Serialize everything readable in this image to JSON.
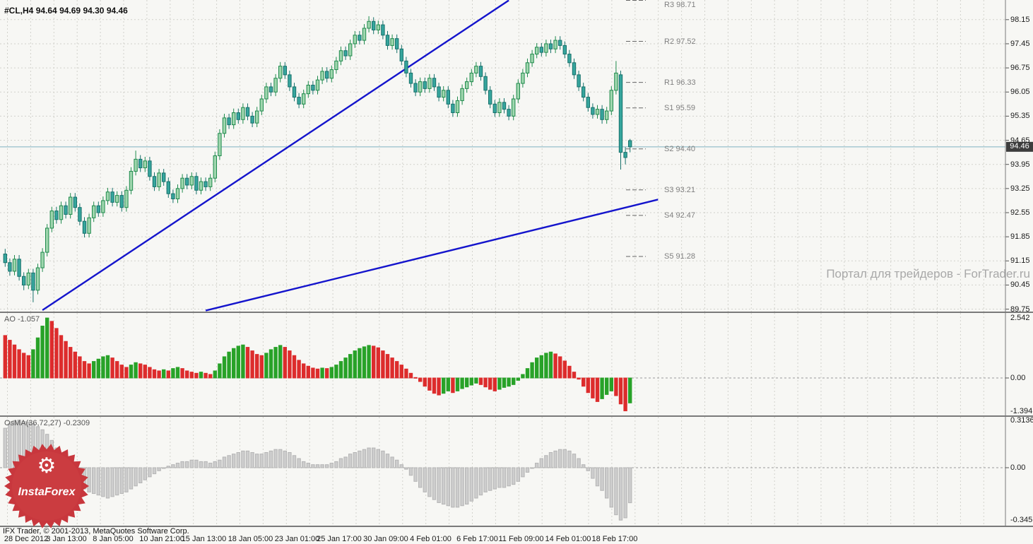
{
  "header": {
    "symbol_period": "#CL,H4",
    "open": "94.64",
    "high": "94.69",
    "low": "94.30",
    "close": "94.46"
  },
  "watermark": "Портал для трейдеров - ForTrader.ru",
  "copyright": "IFX Trader, © 2001-2013, MetaQuotes Software Corp.",
  "logo_text": "InstaForex",
  "icons": {
    "gear": "⚙"
  },
  "colors": {
    "grid": "#d2d2cc",
    "panel_border": "#7a7a7a",
    "trendline": "#1414cc",
    "bull_fill": "#9fd6ae",
    "bull_stroke": "#1f8a4c",
    "bear_fill": "#36a59d",
    "bear_stroke": "#17716b",
    "ao_up": "#28a228",
    "ao_down": "#dd2c2c",
    "osma_bar": "#cdcdcd",
    "osma_stroke": "#b5b5b5",
    "badge_bg": "#3d3d3d",
    "badge_text": "#ffffff",
    "logo_red": "#c8373d",
    "watermark_text": "#a8a8a8",
    "current_price_line": "#7fb2c0",
    "sr_text": "#808080"
  },
  "chart_data": {
    "type": "candlestick",
    "symbol": "#CL",
    "timeframe": "H4",
    "last_ohlc": {
      "open": 94.64,
      "high": 94.69,
      "low": 94.3,
      "close": 94.46
    },
    "current_price": 94.46,
    "current_price_label": "94.46",
    "ylim": [
      89.68,
      98.72
    ],
    "price_axis_ticks": [
      98.15,
      97.45,
      96.75,
      96.05,
      95.35,
      94.65,
      93.95,
      93.25,
      92.55,
      91.85,
      91.15,
      90.45,
      89.75
    ],
    "sr_levels": [
      {
        "label": "R3 98.71",
        "value": 98.71
      },
      {
        "label": "R2 97.52",
        "value": 97.52
      },
      {
        "label": "R1 96.33",
        "value": 96.33
      },
      {
        "label": "S1 95.59",
        "value": 95.59
      },
      {
        "label": "S2 94.40",
        "value": 94.4
      },
      {
        "label": "S3 93.21",
        "value": 93.21
      },
      {
        "label": "S4 92.47",
        "value": 92.47
      },
      {
        "label": "S5 91.28",
        "value": 91.28
      }
    ],
    "trendlines": [
      {
        "i1": 8,
        "p1": 89.72,
        "i2": 108,
        "p2": 98.71
      },
      {
        "i1": 43,
        "p1": 89.71,
        "i2": 140,
        "p2": 92.93
      }
    ],
    "time_axis": [
      {
        "label": "28 Dec 2012",
        "i": 1
      },
      {
        "label": "3 Jan 13:00",
        "i": 10
      },
      {
        "label": "8 Jan 05:00",
        "i": 20
      },
      {
        "label": "10 Jan 21:00",
        "i": 30
      },
      {
        "label": "15 Jan 13:00",
        "i": 39
      },
      {
        "label": "18 Jan 05:00",
        "i": 49
      },
      {
        "label": "23 Jan 01:00",
        "i": 59
      },
      {
        "label": "25 Jan 17:00",
        "i": 68
      },
      {
        "label": "30 Jan 09:00",
        "i": 78
      },
      {
        "label": "4 Feb 01:00",
        "i": 88
      },
      {
        "label": "6 Feb 17:00",
        "i": 98
      },
      {
        "label": "11 Feb 09:00",
        "i": 107
      },
      {
        "label": "14 Feb 01:00",
        "i": 117
      },
      {
        "label": "18 Feb 17:00",
        "i": 127
      }
    ],
    "candles": [
      [
        91.35,
        91.5,
        90.98,
        91.1
      ],
      [
        91.1,
        91.22,
        90.72,
        90.85
      ],
      [
        90.85,
        91.32,
        90.73,
        91.2
      ],
      [
        91.2,
        91.32,
        90.58,
        90.7
      ],
      [
        90.7,
        90.82,
        90.3,
        90.45
      ],
      [
        90.45,
        90.92,
        90.33,
        90.8
      ],
      [
        90.8,
        90.92,
        89.95,
        90.3
      ],
      [
        90.3,
        91.07,
        90.18,
        90.95
      ],
      [
        90.95,
        91.52,
        90.83,
        91.4
      ],
      [
        91.4,
        92.22,
        91.28,
        92.1
      ],
      [
        92.1,
        92.72,
        91.98,
        92.6
      ],
      [
        92.6,
        92.72,
        92.23,
        92.35
      ],
      [
        92.35,
        92.87,
        92.23,
        92.75
      ],
      [
        92.75,
        92.87,
        92.38,
        92.5
      ],
      [
        92.5,
        93.12,
        92.38,
        93.0
      ],
      [
        93.0,
        93.12,
        92.58,
        92.7
      ],
      [
        92.7,
        92.82,
        92.18,
        92.3
      ],
      [
        92.3,
        92.42,
        91.83,
        91.95
      ],
      [
        91.95,
        92.52,
        91.83,
        92.4
      ],
      [
        92.4,
        92.87,
        92.28,
        92.75
      ],
      [
        92.75,
        92.87,
        92.43,
        92.55
      ],
      [
        92.55,
        93.02,
        92.43,
        92.9
      ],
      [
        92.9,
        93.27,
        92.78,
        93.15
      ],
      [
        93.15,
        93.27,
        92.73,
        92.85
      ],
      [
        92.85,
        93.17,
        92.73,
        93.05
      ],
      [
        93.05,
        93.17,
        92.58,
        92.7
      ],
      [
        92.7,
        93.32,
        92.58,
        93.2
      ],
      [
        93.2,
        93.87,
        93.08,
        93.75
      ],
      [
        93.75,
        94.35,
        93.63,
        94.1
      ],
      [
        94.1,
        94.22,
        93.73,
        93.85
      ],
      [
        93.85,
        94.17,
        93.73,
        94.05
      ],
      [
        94.05,
        94.17,
        93.48,
        93.6
      ],
      [
        93.6,
        93.72,
        93.18,
        93.3
      ],
      [
        93.3,
        93.82,
        93.18,
        93.7
      ],
      [
        93.7,
        93.82,
        93.33,
        93.45
      ],
      [
        93.45,
        93.57,
        92.98,
        93.1
      ],
      [
        93.1,
        93.22,
        92.83,
        92.95
      ],
      [
        92.95,
        93.37,
        92.83,
        93.25
      ],
      [
        93.25,
        93.67,
        93.13,
        93.55
      ],
      [
        93.55,
        93.67,
        93.23,
        93.35
      ],
      [
        93.35,
        93.72,
        93.23,
        93.6
      ],
      [
        93.6,
        93.72,
        93.08,
        93.2
      ],
      [
        93.2,
        93.57,
        93.08,
        93.45
      ],
      [
        93.45,
        93.57,
        93.18,
        93.3
      ],
      [
        93.3,
        93.67,
        93.18,
        93.55
      ],
      [
        93.55,
        94.32,
        93.43,
        94.2
      ],
      [
        94.2,
        94.97,
        94.08,
        94.85
      ],
      [
        94.85,
        95.42,
        94.73,
        95.3
      ],
      [
        95.3,
        95.42,
        94.98,
        95.1
      ],
      [
        95.1,
        95.57,
        94.98,
        95.45
      ],
      [
        95.45,
        95.57,
        95.13,
        95.25
      ],
      [
        95.25,
        95.72,
        95.13,
        95.6
      ],
      [
        95.6,
        95.72,
        95.23,
        95.35
      ],
      [
        95.35,
        95.47,
        95.03,
        95.15
      ],
      [
        95.15,
        95.62,
        95.03,
        95.5
      ],
      [
        95.5,
        95.97,
        95.38,
        95.85
      ],
      [
        95.85,
        96.32,
        95.73,
        96.2
      ],
      [
        96.2,
        96.32,
        95.93,
        96.05
      ],
      [
        96.05,
        96.57,
        95.93,
        96.45
      ],
      [
        96.45,
        96.92,
        96.33,
        96.8
      ],
      [
        96.8,
        96.92,
        96.43,
        96.55
      ],
      [
        96.55,
        96.67,
        96.08,
        96.2
      ],
      [
        96.2,
        96.32,
        95.78,
        95.9
      ],
      [
        95.9,
        96.02,
        95.58,
        95.7
      ],
      [
        95.7,
        96.12,
        95.58,
        96.0
      ],
      [
        96.0,
        96.37,
        95.88,
        96.25
      ],
      [
        96.25,
        96.37,
        95.98,
        96.1
      ],
      [
        96.1,
        96.52,
        95.98,
        96.4
      ],
      [
        96.4,
        96.77,
        96.28,
        96.65
      ],
      [
        96.65,
        96.77,
        96.33,
        96.45
      ],
      [
        96.45,
        96.82,
        96.33,
        96.7
      ],
      [
        96.7,
        97.07,
        96.58,
        96.95
      ],
      [
        96.95,
        97.37,
        96.83,
        97.25
      ],
      [
        97.25,
        97.37,
        96.98,
        97.1
      ],
      [
        97.1,
        97.57,
        96.98,
        97.45
      ],
      [
        97.45,
        97.82,
        97.33,
        97.7
      ],
      [
        97.7,
        97.82,
        97.43,
        97.55
      ],
      [
        97.55,
        98.02,
        97.43,
        97.9
      ],
      [
        97.9,
        98.25,
        97.78,
        98.1
      ],
      [
        98.1,
        98.22,
        97.73,
        97.85
      ],
      [
        97.85,
        98.12,
        97.73,
        98.0
      ],
      [
        98.0,
        98.12,
        97.58,
        97.7
      ],
      [
        97.7,
        97.82,
        97.28,
        97.4
      ],
      [
        97.4,
        97.72,
        97.28,
        97.6
      ],
      [
        97.6,
        97.72,
        97.18,
        97.3
      ],
      [
        97.3,
        97.42,
        96.83,
        96.95
      ],
      [
        96.95,
        97.07,
        96.48,
        96.6
      ],
      [
        96.6,
        96.72,
        96.18,
        96.3
      ],
      [
        96.3,
        96.42,
        95.93,
        96.05
      ],
      [
        96.05,
        96.47,
        95.93,
        96.35
      ],
      [
        96.35,
        96.47,
        96.03,
        96.15
      ],
      [
        96.15,
        96.57,
        96.03,
        96.45
      ],
      [
        96.45,
        96.57,
        96.08,
        96.2
      ],
      [
        96.2,
        96.32,
        95.78,
        95.9
      ],
      [
        95.9,
        96.22,
        95.78,
        96.1
      ],
      [
        96.1,
        96.22,
        95.58,
        95.7
      ],
      [
        95.7,
        95.82,
        95.33,
        95.45
      ],
      [
        95.45,
        95.92,
        95.33,
        95.8
      ],
      [
        95.8,
        96.27,
        95.68,
        96.15
      ],
      [
        96.15,
        96.47,
        96.03,
        96.35
      ],
      [
        96.35,
        96.72,
        96.23,
        96.6
      ],
      [
        96.6,
        96.92,
        96.48,
        96.8
      ],
      [
        96.8,
        96.92,
        96.38,
        96.5
      ],
      [
        96.5,
        96.62,
        95.98,
        96.1
      ],
      [
        96.1,
        96.22,
        95.58,
        95.7
      ],
      [
        95.7,
        95.82,
        95.33,
        95.45
      ],
      [
        95.45,
        95.87,
        95.33,
        95.75
      ],
      [
        95.75,
        95.87,
        95.43,
        95.55
      ],
      [
        95.55,
        95.67,
        95.23,
        95.35
      ],
      [
        95.35,
        95.97,
        95.23,
        95.85
      ],
      [
        95.85,
        96.42,
        95.73,
        96.3
      ],
      [
        96.3,
        96.72,
        96.18,
        96.6
      ],
      [
        96.6,
        97.02,
        96.48,
        96.9
      ],
      [
        96.9,
        97.27,
        96.78,
        97.15
      ],
      [
        97.15,
        97.47,
        97.03,
        97.35
      ],
      [
        97.35,
        97.47,
        97.08,
        97.2
      ],
      [
        97.2,
        97.57,
        97.08,
        97.45
      ],
      [
        97.45,
        97.57,
        97.18,
        97.3
      ],
      [
        97.3,
        97.67,
        97.18,
        97.55
      ],
      [
        97.55,
        97.67,
        97.28,
        97.4
      ],
      [
        97.4,
        97.52,
        97.03,
        97.15
      ],
      [
        97.15,
        97.27,
        96.78,
        96.9
      ],
      [
        96.9,
        97.02,
        96.43,
        96.55
      ],
      [
        96.55,
        96.67,
        96.08,
        96.2
      ],
      [
        96.2,
        96.32,
        95.78,
        95.9
      ],
      [
        95.9,
        96.02,
        95.48,
        95.6
      ],
      [
        95.6,
        95.72,
        95.28,
        95.4
      ],
      [
        95.4,
        95.67,
        95.28,
        95.55
      ],
      [
        95.55,
        95.67,
        95.13,
        95.25
      ],
      [
        95.25,
        95.62,
        95.13,
        95.5
      ],
      [
        95.5,
        96.22,
        95.38,
        96.1
      ],
      [
        96.1,
        96.95,
        95.98,
        96.6
      ],
      [
        96.55,
        96.67,
        93.8,
        94.3
      ],
      [
        94.3,
        94.45,
        93.95,
        94.15
      ],
      [
        94.64,
        94.69,
        94.3,
        94.46
      ]
    ],
    "indicators": [
      {
        "name": "AO",
        "label": "AO -1.057",
        "current": -1.057,
        "ticks": [
          {
            "label": "2.542",
            "value": 2.542
          },
          {
            "label": "0.00",
            "value": 0
          },
          {
            "label": "-1.394",
            "value": -1.394
          }
        ],
        "values": [
          1.8,
          1.6,
          1.4,
          1.2,
          1.05,
          0.95,
          1.2,
          1.7,
          2.2,
          2.542,
          2.4,
          2.1,
          1.8,
          1.55,
          1.3,
          1.1,
          0.9,
          0.7,
          0.6,
          0.7,
          0.8,
          0.9,
          0.95,
          0.85,
          0.7,
          0.55,
          0.45,
          0.55,
          0.65,
          0.6,
          0.55,
          0.45,
          0.35,
          0.3,
          0.35,
          0.3,
          0.4,
          0.45,
          0.4,
          0.3,
          0.25,
          0.2,
          0.25,
          0.2,
          0.15,
          0.3,
          0.6,
          0.9,
          1.1,
          1.25,
          1.35,
          1.4,
          1.3,
          1.15,
          1.0,
          0.95,
          1.05,
          1.2,
          1.3,
          1.38,
          1.3,
          1.15,
          0.95,
          0.75,
          0.6,
          0.5,
          0.42,
          0.38,
          0.42,
          0.4,
          0.45,
          0.55,
          0.7,
          0.85,
          1.0,
          1.15,
          1.25,
          1.32,
          1.38,
          1.35,
          1.28,
          1.15,
          1.0,
          0.85,
          0.7,
          0.55,
          0.38,
          0.2,
          0.02,
          -0.15,
          -0.35,
          -0.52,
          -0.65,
          -0.72,
          -0.65,
          -0.55,
          -0.62,
          -0.55,
          -0.45,
          -0.38,
          -0.3,
          -0.22,
          -0.28,
          -0.38,
          -0.48,
          -0.55,
          -0.48,
          -0.4,
          -0.35,
          -0.28,
          -0.1,
          0.15,
          0.4,
          0.65,
          0.85,
          0.95,
          1.05,
          1.1,
          1.02,
          0.9,
          0.72,
          0.5,
          0.25,
          -0.05,
          -0.35,
          -0.62,
          -0.85,
          -1.0,
          -0.88,
          -0.7,
          -0.55,
          -0.75,
          -1.1,
          -1.394,
          -1.057
        ]
      },
      {
        "name": "OsMA",
        "label": "OsMA(36,72,27) -0.2309",
        "params": "36,72,27",
        "current": -0.2309,
        "ticks": [
          {
            "label": "0.3136",
            "value": 0.3136
          },
          {
            "label": "0.00",
            "value": 0
          },
          {
            "label": "-0.3451",
            "value": -0.3451
          }
        ],
        "values": [
          0.26,
          0.29,
          0.31,
          0.3136,
          0.305,
          0.3,
          0.29,
          0.27,
          0.25,
          0.22,
          0.18,
          0.13,
          0.07,
          0.01,
          -0.04,
          -0.08,
          -0.11,
          -0.14,
          -0.16,
          -0.17,
          -0.18,
          -0.19,
          -0.2,
          -0.19,
          -0.18,
          -0.17,
          -0.16,
          -0.14,
          -0.12,
          -0.1,
          -0.08,
          -0.06,
          -0.04,
          -0.02,
          0.0,
          0.01,
          0.02,
          0.03,
          0.04,
          0.04,
          0.05,
          0.05,
          0.04,
          0.04,
          0.03,
          0.04,
          0.05,
          0.07,
          0.08,
          0.09,
          0.1,
          0.11,
          0.11,
          0.1,
          0.09,
          0.09,
          0.1,
          0.11,
          0.12,
          0.12,
          0.11,
          0.1,
          0.08,
          0.06,
          0.04,
          0.03,
          0.02,
          0.02,
          0.02,
          0.02,
          0.03,
          0.04,
          0.06,
          0.07,
          0.09,
          0.1,
          0.11,
          0.12,
          0.13,
          0.13,
          0.12,
          0.11,
          0.09,
          0.07,
          0.05,
          0.02,
          -0.01,
          -0.05,
          -0.09,
          -0.13,
          -0.16,
          -0.19,
          -0.21,
          -0.23,
          -0.24,
          -0.25,
          -0.26,
          -0.26,
          -0.25,
          -0.24,
          -0.22,
          -0.2,
          -0.18,
          -0.16,
          -0.15,
          -0.14,
          -0.13,
          -0.13,
          -0.12,
          -0.11,
          -0.09,
          -0.06,
          -0.03,
          0.0,
          0.03,
          0.06,
          0.08,
          0.1,
          0.11,
          0.12,
          0.12,
          0.11,
          0.09,
          0.06,
          0.02,
          -0.02,
          -0.07,
          -0.12,
          -0.15,
          -0.2,
          -0.26,
          -0.31,
          -0.3451,
          -0.33,
          -0.2309
        ]
      }
    ]
  }
}
